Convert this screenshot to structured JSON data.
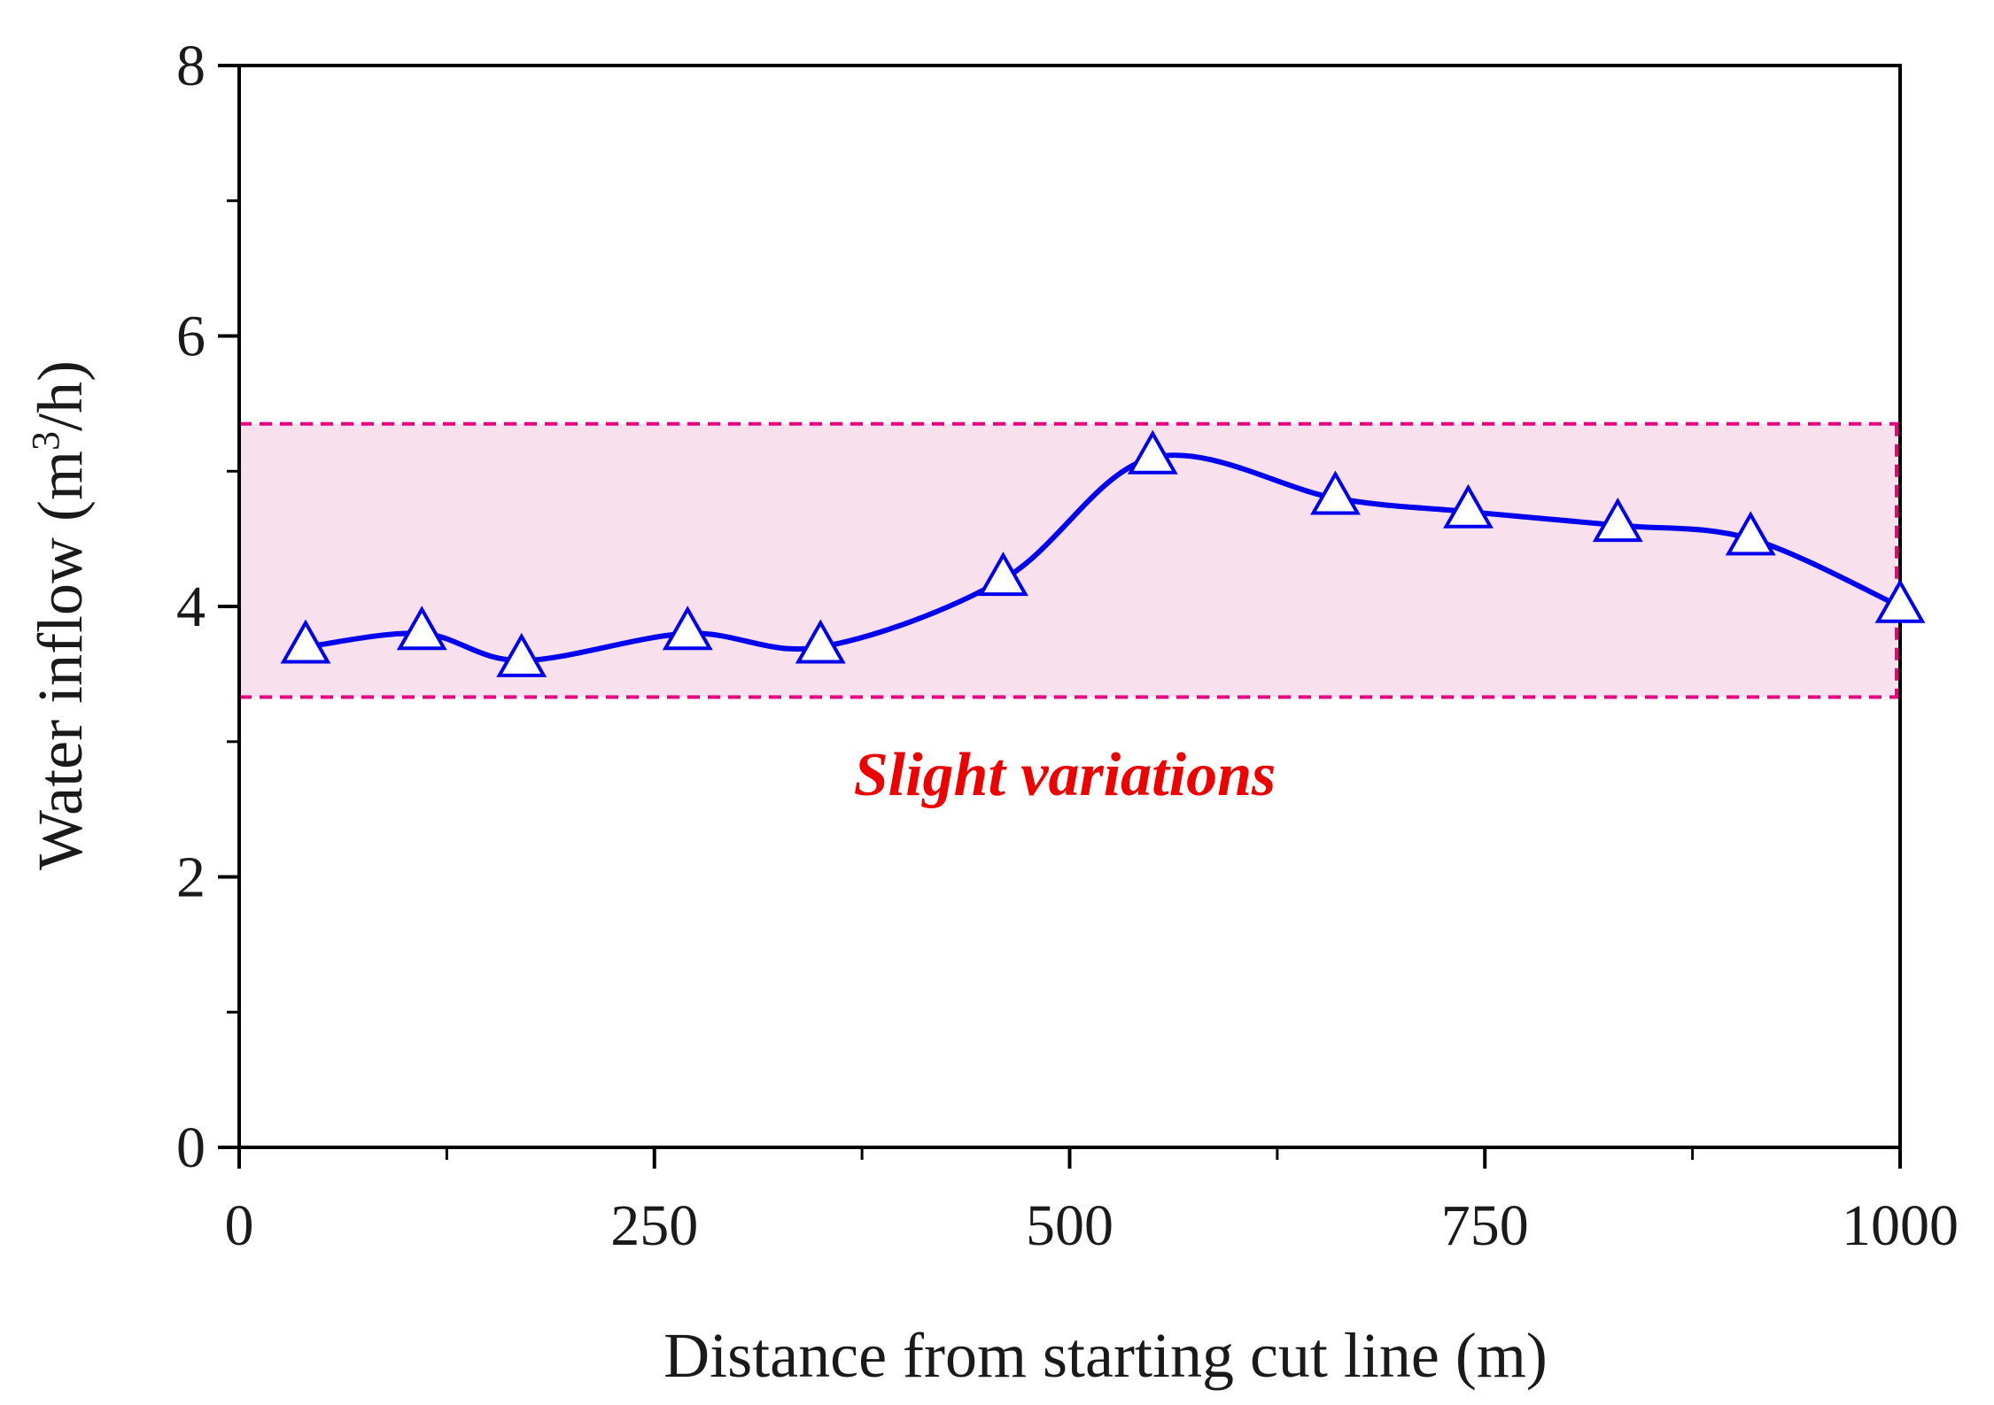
{
  "chart_data": {
    "type": "line",
    "title": "",
    "xlabel": "Distance from starting cut line (m)",
    "ylabel_main": "Water inflow (m",
    "ylabel_sup": "3",
    "ylabel_end": "/h)",
    "xlim": [
      0,
      1000
    ],
    "ylim": [
      0,
      8
    ],
    "x_ticks": [
      0,
      250,
      500,
      750,
      1000
    ],
    "x_tick_labels": [
      "0",
      "250",
      "500",
      "750",
      "1000"
    ],
    "x_minor_ticks": [
      125,
      375,
      625,
      875
    ],
    "y_ticks": [
      0,
      2,
      4,
      6,
      8
    ],
    "y_tick_labels": [
      "0",
      "2",
      "4",
      "6",
      "8"
    ],
    "y_minor_ticks": [
      1,
      3,
      5,
      7
    ],
    "series": [
      {
        "name": "Water inflow",
        "color": "#0000ee",
        "marker": "triangle",
        "x": [
          40,
          110,
          170,
          270,
          350,
          460,
          550,
          660,
          740,
          830,
          910,
          1000
        ],
        "y": [
          3.7,
          3.8,
          3.6,
          3.8,
          3.7,
          4.2,
          5.1,
          4.8,
          4.7,
          4.6,
          4.5,
          4.0
        ]
      }
    ],
    "band": {
      "y_min": 3.33,
      "y_max": 5.35,
      "fill": "#f8e0ec",
      "stroke": "#e8007f"
    },
    "annotation": {
      "text": "Slight variations",
      "color": "#ee0000"
    }
  }
}
